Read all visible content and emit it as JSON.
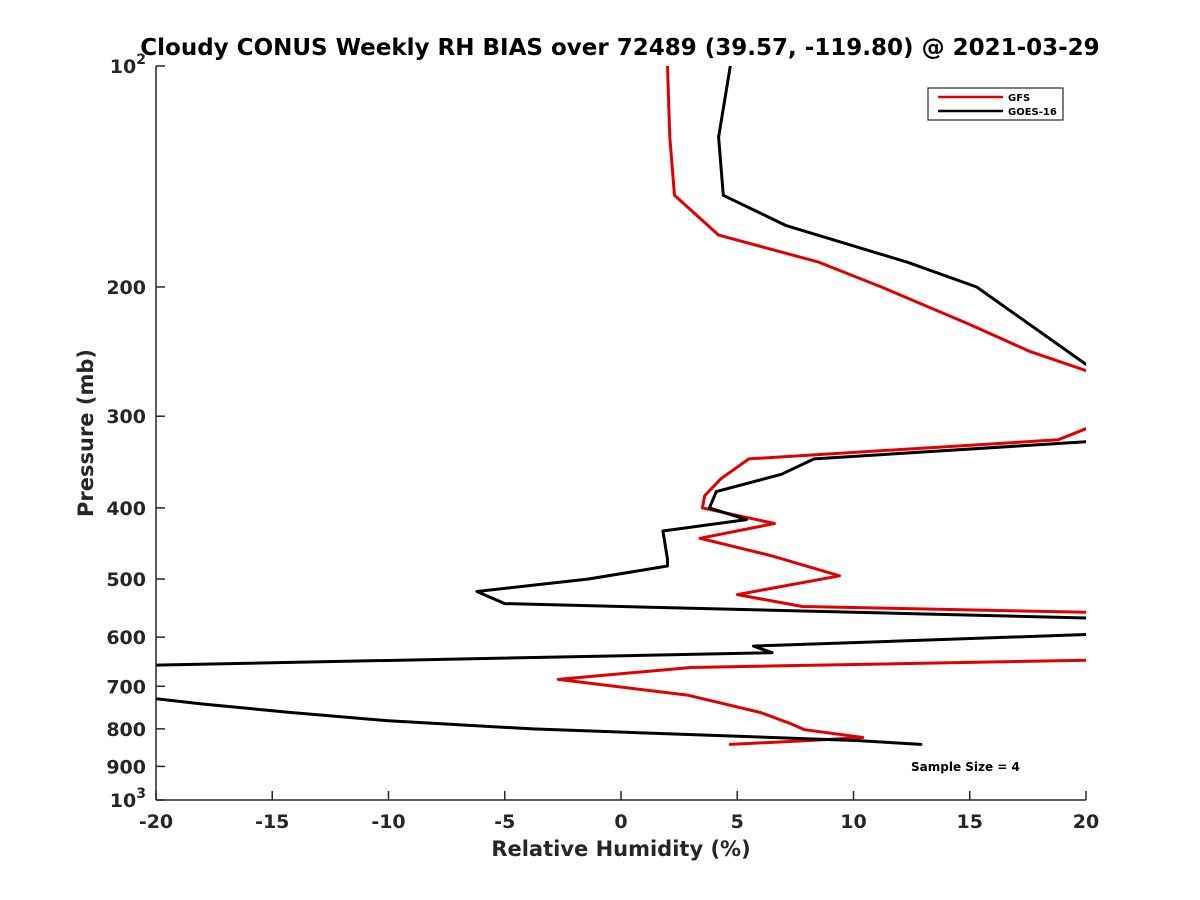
{
  "chart_data": {
    "type": "line",
    "title": "Cloudy CONUS Weekly RH BIAS over 72489 (39.57, -119.80) @ 2021-03-29",
    "xlabel": "Relative Humidity (%)",
    "ylabel": "Pressure (mb)",
    "xlim": [
      -20,
      20
    ],
    "ylim": [
      100,
      1000
    ],
    "y_scale": "log",
    "y_reversed": true,
    "grid": false,
    "legend_position": "top-right",
    "x_ticks": [
      -20,
      -15,
      -10,
      -5,
      0,
      5,
      10,
      15,
      20
    ],
    "x_tick_labels": [
      "-20",
      "-15",
      "-10",
      "-5",
      "0",
      "5",
      "10",
      "15",
      "20"
    ],
    "y_ticks": [
      100,
      200,
      300,
      400,
      500,
      600,
      700,
      800,
      900,
      1000
    ],
    "y_tick_labels": [
      {
        "base": "10",
        "exp": "2"
      },
      {
        "base": "200",
        "exp": ""
      },
      {
        "base": "300",
        "exp": ""
      },
      {
        "base": "400",
        "exp": ""
      },
      {
        "base": "500",
        "exp": ""
      },
      {
        "base": "600",
        "exp": ""
      },
      {
        "base": "700",
        "exp": ""
      },
      {
        "base": "800",
        "exp": ""
      },
      {
        "base": "900",
        "exp": ""
      },
      {
        "base": "10",
        "exp": "3"
      }
    ],
    "annotation": "Sample Size = 4",
    "series": [
      {
        "name": "GFS",
        "color": "#e00000",
        "points": [
          [
            2.0,
            100
          ],
          [
            2.1,
            125
          ],
          [
            2.3,
            150
          ],
          [
            4.2,
            170
          ],
          [
            8.5,
            185
          ],
          [
            11.2,
            200
          ],
          [
            15.0,
            225
          ],
          [
            17.6,
            245
          ],
          [
            20.0,
            260
          ],
          [
            null,
            null
          ],
          [
            20.0,
            312
          ],
          [
            18.8,
            323
          ],
          [
            5.5,
            343
          ],
          [
            4.3,
            365
          ],
          [
            3.6,
            385
          ],
          [
            3.5,
            400
          ],
          [
            6.6,
            420
          ],
          [
            3.4,
            440
          ],
          [
            6.5,
            465
          ],
          [
            9.4,
            495
          ],
          [
            5.0,
            525
          ],
          [
            7.8,
            545
          ],
          [
            20.0,
            555
          ],
          [
            null,
            null
          ],
          [
            20.0,
            645
          ],
          [
            3.0,
            660
          ],
          [
            -2.7,
            685
          ],
          [
            2.9,
            720
          ],
          [
            6.0,
            760
          ],
          [
            7.2,
            785
          ],
          [
            7.9,
            802
          ],
          [
            10.4,
            822
          ],
          [
            8.0,
            830
          ],
          [
            4.7,
            840
          ]
        ]
      },
      {
        "name": "GOES-16",
        "color": "#000000",
        "points": [
          [
            4.7,
            100
          ],
          [
            4.2,
            125
          ],
          [
            4.4,
            150
          ],
          [
            7.1,
            165
          ],
          [
            12.3,
            185
          ],
          [
            15.3,
            200
          ],
          [
            20.0,
            255
          ],
          [
            null,
            null
          ],
          [
            20.0,
            325
          ],
          [
            8.3,
            343
          ],
          [
            6.9,
            360
          ],
          [
            4.1,
            380
          ],
          [
            3.8,
            400
          ],
          [
            5.4,
            415
          ],
          [
            1.8,
            430
          ],
          [
            2.0,
            470
          ],
          [
            2.0,
            480
          ],
          [
            -1.4,
            500
          ],
          [
            -6.2,
            520
          ],
          [
            -5.0,
            540
          ],
          [
            20.0,
            565
          ],
          [
            null,
            null
          ],
          [
            20.0,
            595
          ],
          [
            5.7,
            617
          ],
          [
            6.5,
            630
          ],
          [
            -20.0,
            655
          ],
          [
            null,
            null
          ],
          [
            -20.0,
            728
          ],
          [
            -18.0,
            740
          ],
          [
            -14.2,
            760
          ],
          [
            -10.0,
            780
          ],
          [
            -3.8,
            800
          ],
          [
            10.2,
            830
          ],
          [
            12.9,
            840
          ]
        ]
      }
    ]
  }
}
